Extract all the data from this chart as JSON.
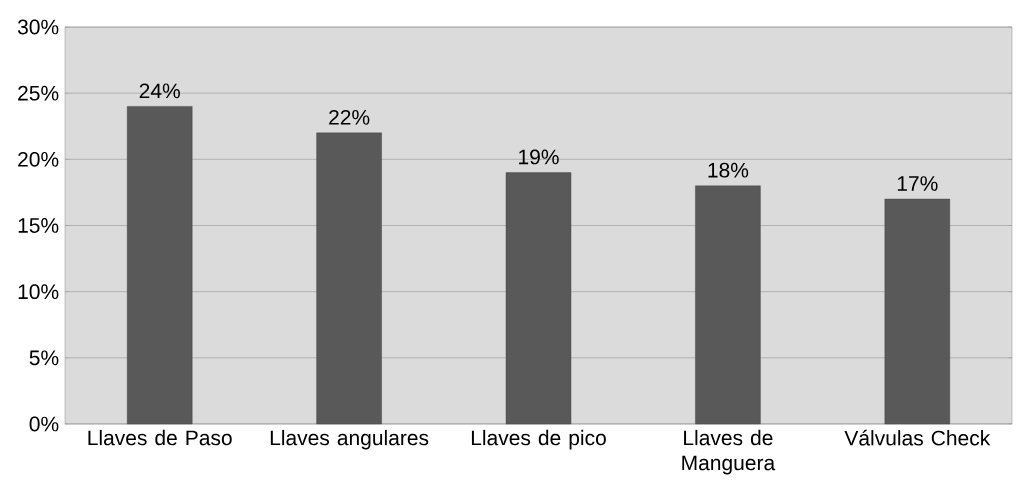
{
  "chart_data": {
    "type": "bar",
    "categories": [
      "Llaves de Paso",
      "Llaves angulares",
      "Llaves de pico",
      "Llaves de Manguera",
      "Válvulas Check"
    ],
    "values": [
      24,
      22,
      19,
      18,
      17
    ],
    "value_labels": [
      "24%",
      "22%",
      "19%",
      "18%",
      "17%"
    ],
    "color": "#595959",
    "ylim": [
      0,
      30
    ],
    "yticks": [
      {
        "value": 0,
        "label": "0%"
      },
      {
        "value": 5,
        "label": "5%"
      },
      {
        "value": 10,
        "label": "10%"
      },
      {
        "value": 15,
        "label": "15%"
      },
      {
        "value": 20,
        "label": "20%"
      },
      {
        "value": 25,
        "label": "25%"
      },
      {
        "value": 30,
        "label": "30%"
      }
    ],
    "grid": "y"
  }
}
